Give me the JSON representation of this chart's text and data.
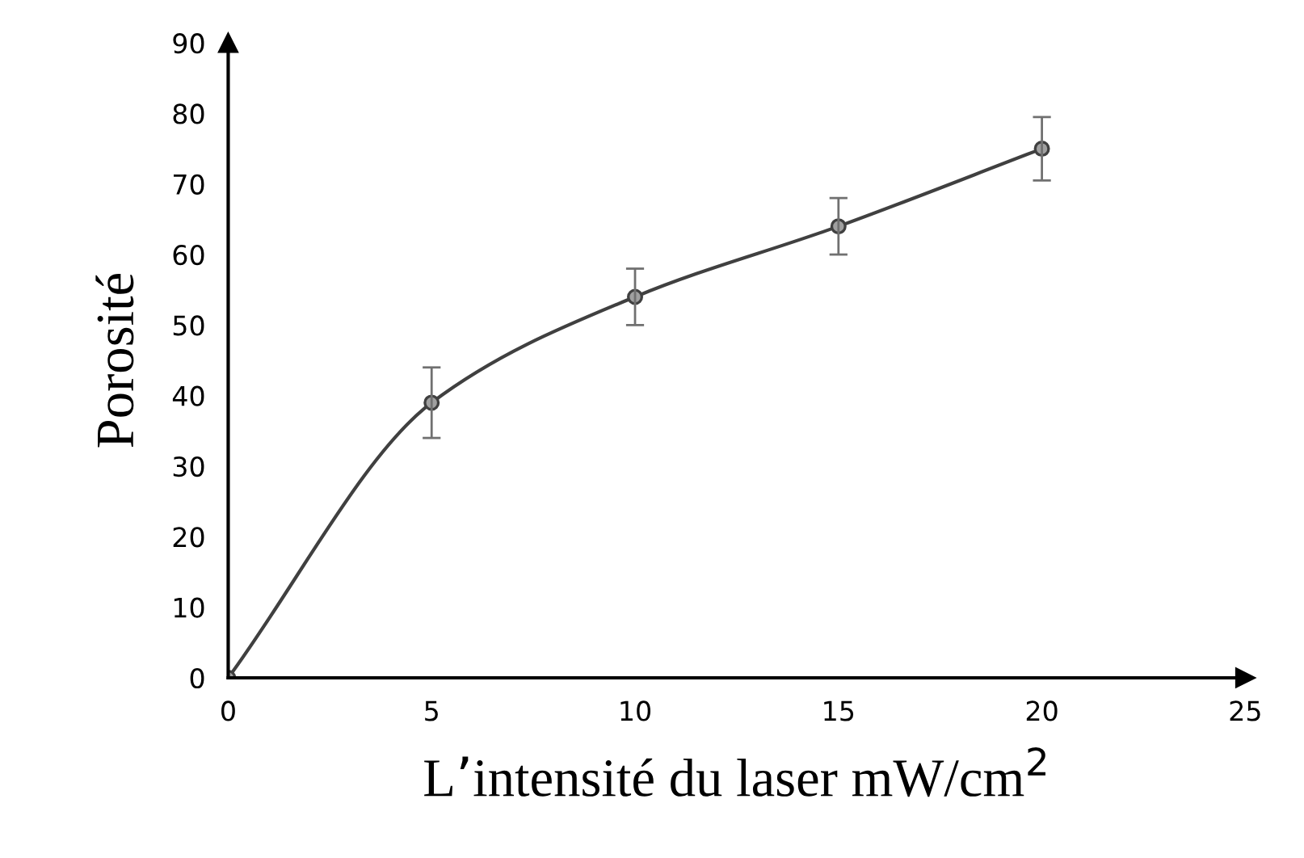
{
  "chart_data": {
    "type": "line",
    "xlabel": "L’intensité du laser mW/cm$^{2}$",
    "ylabel": "Porosité",
    "x": [
      0,
      5,
      10,
      15,
      20
    ],
    "series": [
      {
        "color": "#404040",
        "values": [
          0,
          39,
          54,
          64,
          75
        ],
        "errors": [
          null,
          5,
          4,
          4,
          4.5
        ]
      }
    ],
    "xlim": [
      0,
      25
    ],
    "xticks": [
      0,
      5,
      10,
      15,
      20,
      25
    ],
    "ylim": [
      0,
      90
    ],
    "yticks": [
      0,
      10,
      20,
      30,
      40,
      50,
      60,
      70,
      80,
      90
    ],
    "grid": false,
    "legend": false,
    "marker": "circle",
    "line_style": "solid"
  }
}
